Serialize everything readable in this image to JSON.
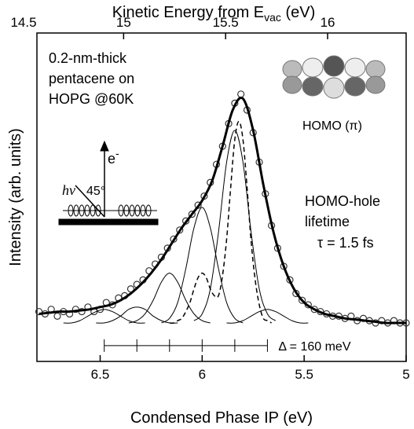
{
  "chart_data": {
    "type": "line",
    "xlabel": "Condensed Phase IP (eV)",
    "ylabel": "Intensity (arb. units)",
    "top_xlabel": {
      "main": "Kinetic Energy from E",
      "sub": "vac",
      "unit": " (eV)"
    },
    "xlim": [
      6.81,
      5.0
    ],
    "xticks": [
      6.5,
      6,
      5.5,
      5
    ],
    "top_xlim": [
      14.575,
      16.385
    ],
    "top_xticks": [
      14.5,
      15,
      15.5,
      16
    ],
    "ylim": [
      -0.17,
      1.28
    ],
    "series": [
      {
        "type": "scatter",
        "color": "#333333",
        "x": [
          6.8,
          6.77,
          6.74,
          6.71,
          6.68,
          6.65,
          6.62,
          6.59,
          6.56,
          6.53,
          6.5,
          6.47,
          6.44,
          6.41,
          6.38,
          6.35,
          6.32,
          6.29,
          6.26,
          6.23,
          6.2,
          6.17,
          6.14,
          6.11,
          6.08,
          6.05,
          6.02,
          5.99,
          5.96,
          5.93,
          5.9,
          5.87,
          5.84,
          5.81,
          5.78,
          5.75,
          5.72,
          5.69,
          5.66,
          5.63,
          5.6,
          5.57,
          5.54,
          5.51,
          5.48,
          5.45,
          5.42,
          5.39,
          5.36,
          5.33,
          5.3,
          5.27,
          5.24,
          5.21,
          5.18,
          5.15,
          5.12,
          5.09,
          5.06,
          5.03,
          5.0
        ],
        "values": [
          0.05,
          0.04,
          0.06,
          0.03,
          0.05,
          0.04,
          0.06,
          0.05,
          0.07,
          0.05,
          0.06,
          0.09,
          0.08,
          0.11,
          0.12,
          0.15,
          0.17,
          0.19,
          0.23,
          0.26,
          0.29,
          0.33,
          0.37,
          0.41,
          0.45,
          0.48,
          0.52,
          0.56,
          0.62,
          0.7,
          0.78,
          0.88,
          0.97,
          1.01,
          0.94,
          0.84,
          0.71,
          0.57,
          0.43,
          0.33,
          0.25,
          0.19,
          0.13,
          0.1,
          0.08,
          0.06,
          0.05,
          0.04,
          0.03,
          0.03,
          0.02,
          0.03,
          0.01,
          0.02,
          0.01,
          0.0,
          0.01,
          0.0,
          0.01,
          0.0,
          0.0
        ]
      },
      {
        "type": "line",
        "color": "#000000",
        "width": 3,
        "dash": false,
        "x": [
          6.8,
          6.75,
          6.7,
          6.65,
          6.6,
          6.55,
          6.5,
          6.45,
          6.4,
          6.35,
          6.3,
          6.25,
          6.2,
          6.15,
          6.1,
          6.05,
          6.0,
          5.95,
          5.9,
          5.85,
          5.8,
          5.75,
          5.7,
          5.65,
          5.6,
          5.55,
          5.5,
          5.45,
          5.4,
          5.35,
          5.3,
          5.25,
          5.2,
          5.15,
          5.1,
          5.05,
          5.0
        ],
        "values": [
          0.04,
          0.045,
          0.05,
          0.05,
          0.055,
          0.06,
          0.07,
          0.08,
          0.1,
          0.13,
          0.17,
          0.22,
          0.28,
          0.35,
          0.42,
          0.48,
          0.54,
          0.63,
          0.78,
          0.94,
          0.99,
          0.85,
          0.61,
          0.4,
          0.25,
          0.15,
          0.09,
          0.06,
          0.04,
          0.03,
          0.02,
          0.015,
          0.01,
          0.005,
          0,
          0,
          0
        ]
      },
      {
        "type": "line",
        "color": "#000000",
        "width": 1.5,
        "dash": true,
        "x": [
          6.16,
          6.14,
          6.12,
          6.1,
          6.08,
          6.06,
          6.04,
          6.02,
          6.0,
          5.98,
          5.96,
          5.94,
          5.92,
          5.9,
          5.88,
          5.86,
          5.84,
          5.82,
          5.8,
          5.78,
          5.76,
          5.74,
          5.72,
          5.7,
          5.68,
          5.66
        ],
        "values": [
          0,
          0,
          0.01,
          0.02,
          0.05,
          0.09,
          0.15,
          0.2,
          0.22,
          0.2,
          0.15,
          0.12,
          0.12,
          0.21,
          0.37,
          0.6,
          0.81,
          0.89,
          0.81,
          0.6,
          0.36,
          0.19,
          0.08,
          0.02,
          0.01,
          0
        ]
      },
      {
        "type": "line",
        "color": "#000000",
        "width": 1,
        "dash": false,
        "x": [
          6.68,
          6.64,
          6.6,
          6.56,
          6.52,
          6.48,
          6.44,
          6.4,
          6.36,
          6.32,
          6.28
        ],
        "values": [
          0,
          0,
          0.01,
          0.03,
          0.05,
          0.06,
          0.05,
          0.03,
          0.01,
          0,
          0
        ]
      },
      {
        "type": "line",
        "color": "#000000",
        "width": 1,
        "dash": false,
        "x": [
          6.52,
          6.48,
          6.44,
          6.4,
          6.36,
          6.32,
          6.28,
          6.24,
          6.2,
          6.16,
          6.12
        ],
        "values": [
          0,
          0,
          0.01,
          0.03,
          0.06,
          0.07,
          0.06,
          0.03,
          0.01,
          0,
          0
        ]
      },
      {
        "type": "line",
        "color": "#000000",
        "width": 1,
        "dash": false,
        "x": [
          6.36,
          6.32,
          6.28,
          6.24,
          6.2,
          6.16,
          6.12,
          6.08,
          6.04,
          6.0,
          5.96
        ],
        "values": [
          0,
          0.01,
          0.04,
          0.1,
          0.18,
          0.22,
          0.18,
          0.1,
          0.04,
          0.01,
          0
        ]
      },
      {
        "type": "line",
        "color": "#000000",
        "width": 1,
        "dash": false,
        "x": [
          6.2,
          6.16,
          6.12,
          6.08,
          6.04,
          6.0,
          5.96,
          5.92,
          5.88,
          5.84,
          5.8
        ],
        "values": [
          0,
          0.02,
          0.09,
          0.24,
          0.42,
          0.51,
          0.42,
          0.24,
          0.09,
          0.02,
          0
        ]
      },
      {
        "type": "line",
        "color": "#000000",
        "width": 1,
        "dash": false,
        "x": [
          6.04,
          6.0,
          5.96,
          5.92,
          5.88,
          5.84,
          5.8,
          5.76,
          5.72,
          5.68,
          5.64
        ],
        "values": [
          0.01,
          0.04,
          0.15,
          0.4,
          0.71,
          0.85,
          0.71,
          0.4,
          0.15,
          0.04,
          0.01
        ]
      },
      {
        "type": "line",
        "color": "#000000",
        "width": 1,
        "dash": false,
        "x": [
          5.88,
          5.84,
          5.8,
          5.76,
          5.72,
          5.68,
          5.64,
          5.6,
          5.56,
          5.52,
          5.48
        ],
        "values": [
          0,
          0,
          0.01,
          0.03,
          0.05,
          0.06,
          0.05,
          0.03,
          0.01,
          0,
          0
        ]
      }
    ],
    "progression": {
      "x": [
        6.48,
        6.32,
        6.16,
        6.0,
        5.84,
        5.68
      ],
      "y": -0.1,
      "label": "Δ = 160 meV"
    },
    "annotations": {
      "sample": [
        "0.2-nm-thick",
        "pentacene on",
        "HOPG @60K"
      ],
      "orbital": "HOMO (π)",
      "lifetime": [
        "HOMO-hole",
        "lifetime",
        "τ = 1.5 fs"
      ],
      "photon": "hν",
      "angle": "45°",
      "electron": "e",
      "electron_charge": "-"
    }
  }
}
